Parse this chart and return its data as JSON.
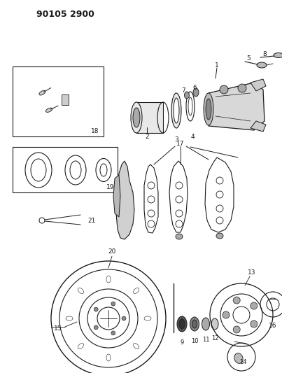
{
  "title": "90105 2900",
  "bg_color": "#ffffff",
  "line_color": "#1a1a1a",
  "title_fontsize": 9,
  "title_fontweight": "bold",
  "figsize": [
    4.03,
    5.33
  ],
  "dpi": 100
}
